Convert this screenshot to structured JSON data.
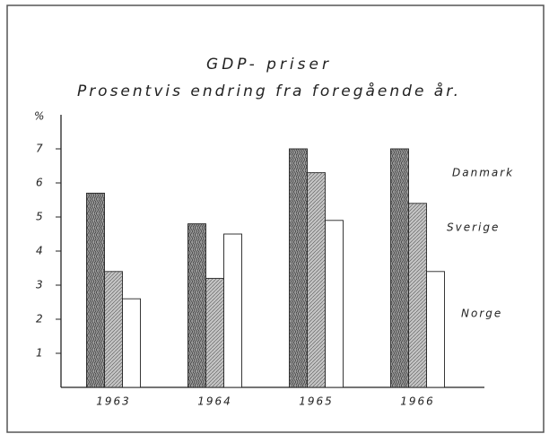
{
  "chart_data": {
    "type": "bar",
    "title": "GDP- priser",
    "subtitle": "Prosentvis endring fra foregående år.",
    "y_label": "%",
    "categories": [
      "1963",
      "1964",
      "1965",
      "1966"
    ],
    "series": [
      {
        "name": "Danmark",
        "color": "#9a9a9a",
        "values": [
          5.7,
          4.8,
          7.0,
          7.0
        ]
      },
      {
        "name": "Sverige",
        "color": "#c4c4c4",
        "values": [
          3.4,
          3.2,
          6.3,
          5.4
        ]
      },
      {
        "name": "Norge",
        "color": "#ffffff",
        "values": [
          2.6,
          4.5,
          4.9,
          3.4
        ]
      }
    ],
    "ylim": [
      0,
      8
    ],
    "yticks": [
      1,
      2,
      3,
      4,
      5,
      6,
      7
    ],
    "grid": false
  }
}
